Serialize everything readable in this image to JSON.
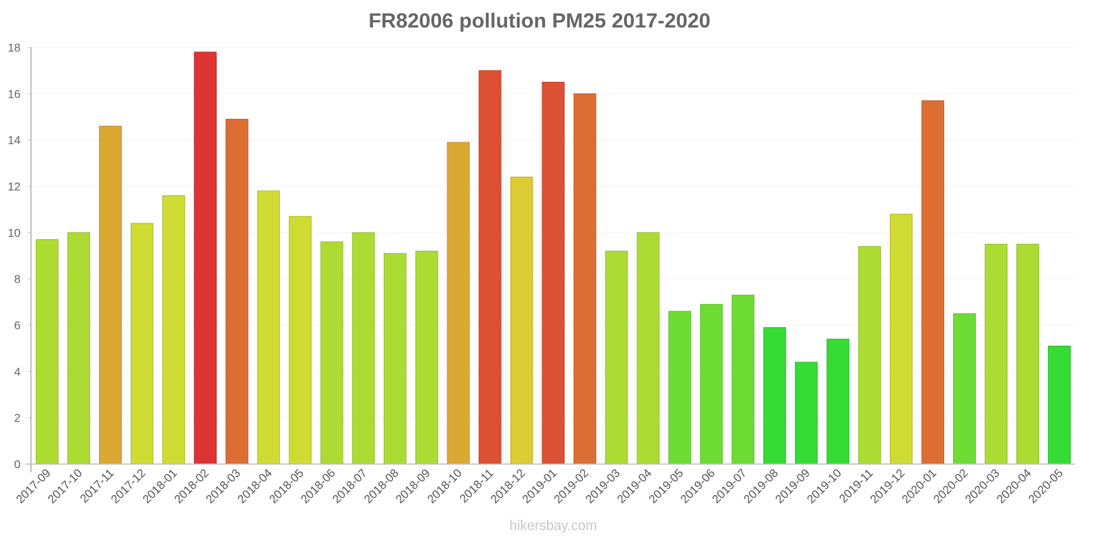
{
  "chart_data": {
    "type": "bar",
    "title": "FR82006 pollution PM25 2017-2020",
    "xlabel": "",
    "ylabel": "",
    "ylim": [
      0,
      18
    ],
    "yticks": [
      0,
      2,
      4,
      6,
      8,
      10,
      12,
      14,
      16,
      18
    ],
    "grid": true,
    "legend": null,
    "categories": [
      "2017-09",
      "2017-10",
      "2017-11",
      "2017-12",
      "2018-01",
      "2018-02",
      "2018-03",
      "2018-04",
      "2018-05",
      "2018-06",
      "2018-07",
      "2018-08",
      "2018-09",
      "2018-10",
      "2018-11",
      "2018-12",
      "2019-01",
      "2019-02",
      "2019-03",
      "2019-04",
      "2019-05",
      "2019-06",
      "2019-07",
      "2019-08",
      "2019-09",
      "2019-10",
      "2019-11",
      "2019-12",
      "2020-01",
      "2020-02",
      "2020-03",
      "2020-04",
      "2020-05"
    ],
    "values": [
      9.7,
      10.0,
      14.6,
      10.4,
      11.6,
      17.8,
      14.9,
      11.8,
      10.7,
      9.6,
      10.0,
      9.1,
      9.2,
      13.9,
      17.0,
      12.4,
      16.5,
      16.0,
      9.2,
      10.0,
      6.6,
      6.9,
      7.3,
      5.9,
      4.4,
      5.4,
      9.4,
      10.8,
      15.7,
      6.5,
      9.5,
      9.5,
      5.1
    ],
    "colors": [
      "#acdc34",
      "#acdc34",
      "#dca834",
      "#cedc34",
      "#cedc34",
      "#dc3434",
      "#dc6e34",
      "#cedc34",
      "#cedc34",
      "#acdc34",
      "#acdc34",
      "#acdc34",
      "#acdc34",
      "#dca834",
      "#dc5034",
      "#dccc34",
      "#dc5034",
      "#dc6e34",
      "#acdc34",
      "#acdc34",
      "#6ddc34",
      "#6ddc34",
      "#6ddc34",
      "#34dc34",
      "#34dc34",
      "#34dc34",
      "#acdc34",
      "#cedc34",
      "#dc6e34",
      "#6ddc34",
      "#acdc34",
      "#acdc34",
      "#34dc34"
    ]
  },
  "watermark": "hikersbay.com"
}
